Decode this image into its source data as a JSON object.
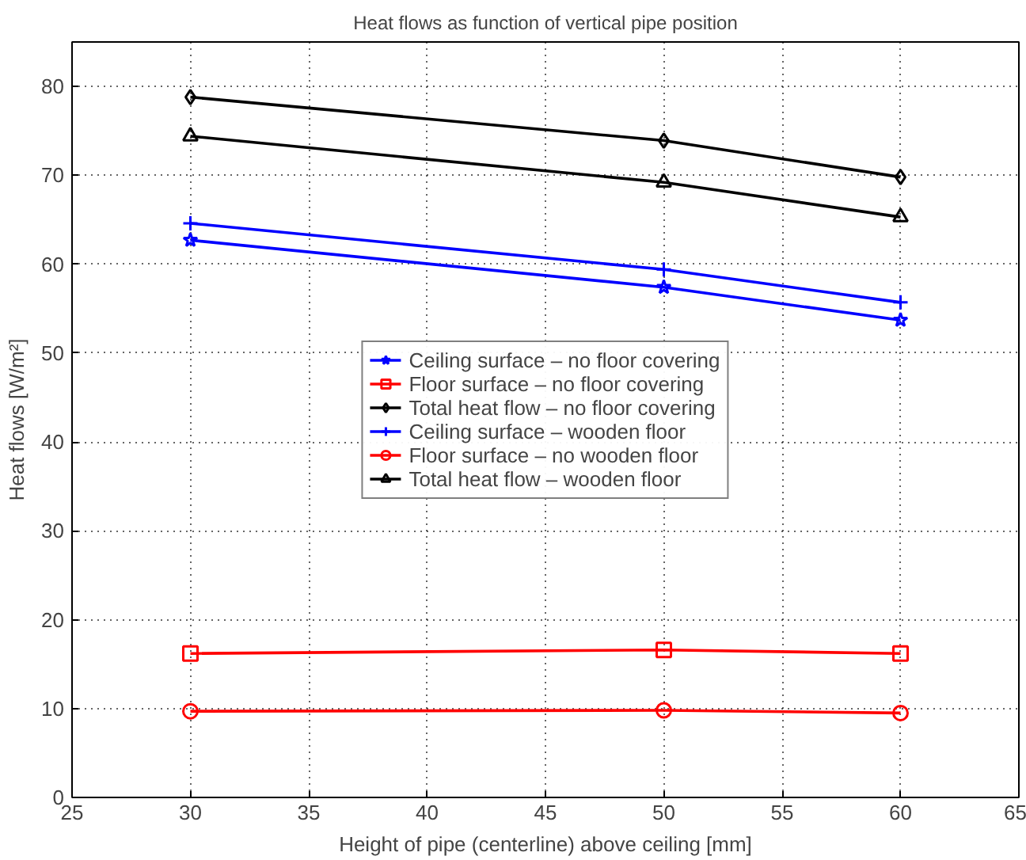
{
  "chart_data": {
    "type": "line",
    "title": "Heat flows as function of vertical pipe position",
    "xlabel": "Height of pipe (centerline) above ceiling [mm]",
    "ylabel": "Heat flows [W/m²]",
    "x": [
      30,
      50,
      60
    ],
    "series": [
      {
        "name": "Ceiling surface – no floor covering",
        "color": "#0000ff",
        "marker": "star",
        "values": [
          62.7,
          57.4,
          53.7
        ]
      },
      {
        "name": "Floor surface – no floor covering",
        "color": "#ff0000",
        "marker": "square",
        "values": [
          16.2,
          16.6,
          16.2
        ]
      },
      {
        "name": "Total heat flow – no floor covering",
        "color": "#000000",
        "marker": "diamond",
        "values": [
          78.8,
          73.9,
          69.8
        ]
      },
      {
        "name": "Ceiling surface – wooden floor",
        "color": "#0000ff",
        "marker": "cross",
        "values": [
          64.6,
          59.4,
          55.7
        ]
      },
      {
        "name": "Floor surface – no wooden floor",
        "color": "#ff0000",
        "marker": "circle",
        "values": [
          9.7,
          9.8,
          9.5
        ]
      },
      {
        "name": "Total heat flow – wooden floor",
        "color": "#000000",
        "marker": "triangle",
        "values": [
          74.4,
          69.2,
          65.3
        ]
      }
    ],
    "xlim": [
      25,
      65
    ],
    "xticks": [
      25,
      30,
      35,
      40,
      45,
      50,
      55,
      60,
      65
    ],
    "ylim": [
      0,
      85
    ],
    "yticks": [
      0,
      10,
      20,
      30,
      40,
      50,
      60,
      70,
      80
    ],
    "grid": true,
    "legend": "center"
  }
}
